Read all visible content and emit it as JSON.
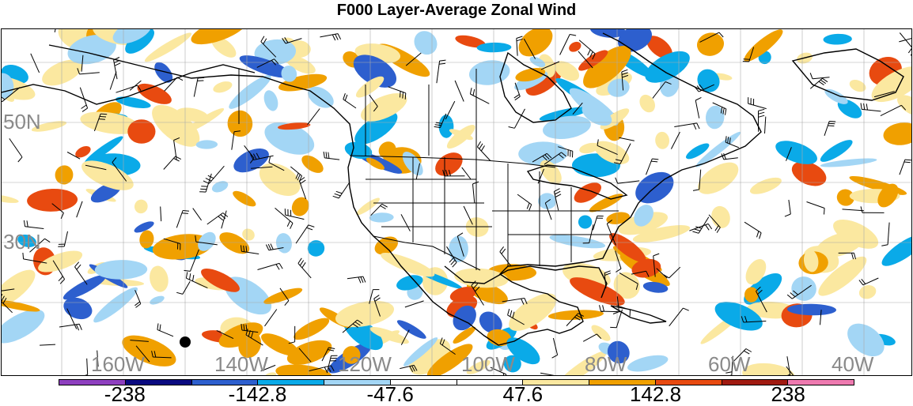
{
  "title": "F000 Layer-Average Zonal Wind",
  "map": {
    "lat_labels": [
      {
        "text": "50N",
        "lat": 50
      },
      {
        "text": "30N",
        "lat": 30
      }
    ],
    "lon_labels": [
      {
        "text": "160W",
        "lon": -160
      },
      {
        "text": "140W",
        "lon": -140
      },
      {
        "text": "120W",
        "lon": -120
      },
      {
        "text": "100W",
        "lon": -100
      },
      {
        "text": "80W",
        "lon": -80
      },
      {
        "text": "60W",
        "lon": -60
      },
      {
        "text": "40W",
        "lon": -40
      }
    ],
    "colors": {
      "land_outline": "#000000",
      "grid": "#aaaaaa"
    }
  },
  "colorbar": {
    "colors": [
      "#8e3fbf",
      "#0a0a80",
      "#2d5fce",
      "#0aaae8",
      "#a3d6f5",
      "#ffffff",
      "#ffffff",
      "#fbe8a0",
      "#f0a000",
      "#e84a10",
      "#a01a10",
      "#ee7ab0"
    ],
    "labels": [
      "-238",
      "-142.8",
      "-47.6",
      "47.6",
      "142.8",
      "238"
    ]
  }
}
